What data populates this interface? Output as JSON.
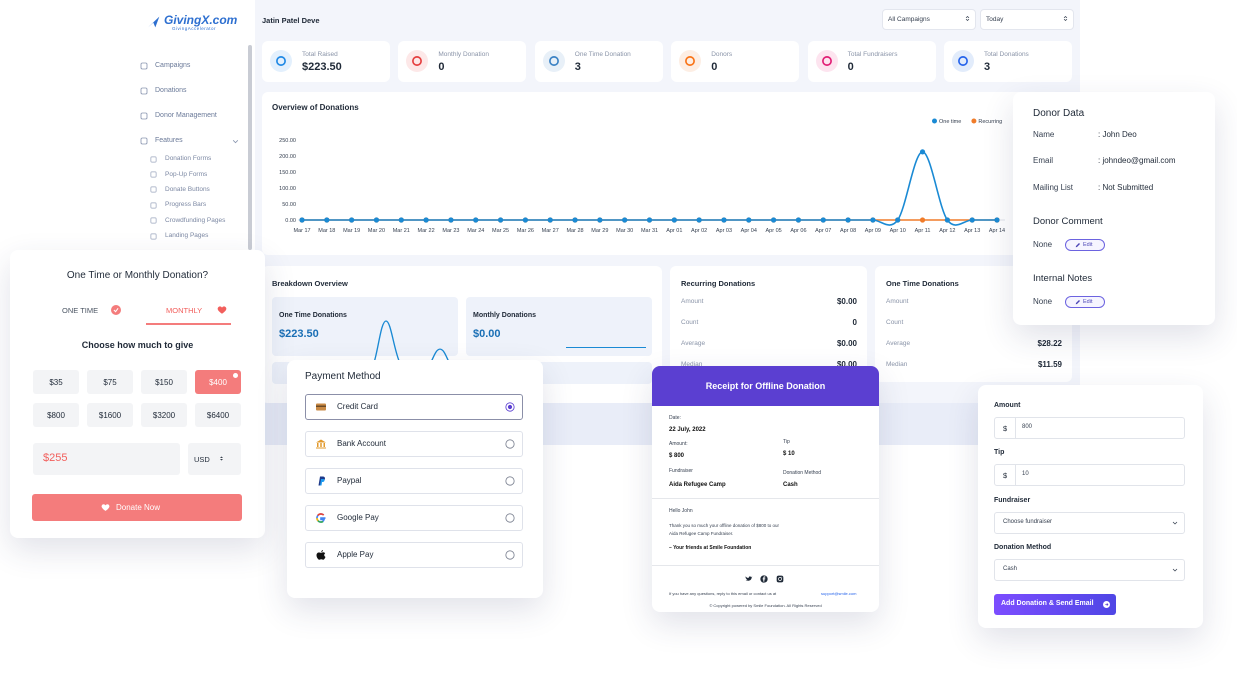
{
  "sidebar": {
    "logo": "GivingX.com",
    "tagline": "GivingAccelerator",
    "menu": [
      "Campaigns",
      "Donations",
      "Donor Management",
      "Features"
    ],
    "submenu": [
      "Donation Forms",
      "Pop-Up Forms",
      "Donate Buttons",
      "Progress Bars",
      "Crowdfunding Pages",
      "Landing Pages"
    ]
  },
  "header": {
    "user": "Jatin Patel Deve",
    "campaign_filter": "All Campaigns",
    "date_filter": "Today"
  },
  "stats": [
    {
      "label": "Total Raised",
      "value": "$223.50"
    },
    {
      "label": "Monthly Donation",
      "value": "0"
    },
    {
      "label": "One Time Donation",
      "value": "3"
    },
    {
      "label": "Donors",
      "value": "0"
    },
    {
      "label": "Total Fundraisers",
      "value": "0"
    },
    {
      "label": "Total Donations",
      "value": "3"
    }
  ],
  "chart_data": {
    "type": "line",
    "title": "Overview of Donations",
    "categories": [
      "Mar 17",
      "Mar 18",
      "Mar 19",
      "Mar 20",
      "Mar 21",
      "Mar 22",
      "Mar 23",
      "Mar 24",
      "Mar 25",
      "Mar 26",
      "Mar 27",
      "Mar 28",
      "Mar 29",
      "Mar 30",
      "Mar 31",
      "Apr 01",
      "Apr 02",
      "Apr 03",
      "Apr 04",
      "Apr 05",
      "Apr 06",
      "Apr 07",
      "Apr 08",
      "Apr 09",
      "Apr 10",
      "Apr 11",
      "Apr 12",
      "Apr 13",
      "Apr 14"
    ],
    "series": [
      {
        "name": "One time",
        "color": "#1a8ad4",
        "values": [
          0,
          0,
          0,
          0,
          0,
          0,
          0,
          0,
          0,
          0,
          0,
          0,
          0,
          0,
          0,
          0,
          0,
          0,
          0,
          0,
          0,
          0,
          0,
          0,
          0,
          213,
          0,
          0,
          0
        ]
      },
      {
        "name": "Recurring",
        "color": "#f07c2a",
        "values": [
          0,
          0,
          0,
          0,
          0,
          0,
          0,
          0,
          0,
          0,
          0,
          0,
          0,
          0,
          0,
          0,
          0,
          0,
          0,
          0,
          0,
          0,
          0,
          0,
          0,
          0,
          0,
          0,
          0
        ]
      }
    ],
    "ylim": [
      0,
      250
    ],
    "yticks": [
      {
        "value": 0,
        "label": "0.00"
      },
      {
        "value": 50,
        "label": "50.00"
      },
      {
        "value": 100,
        "label": "100.00"
      },
      {
        "value": 150,
        "label": "150.00"
      },
      {
        "value": 200,
        "label": "200.00"
      },
      {
        "value": 250,
        "label": "250.00"
      }
    ],
    "grid": false
  },
  "breakdown": {
    "title": "Breakdown Overview",
    "cards": [
      {
        "label": "One Time Donations",
        "value": "$223.50"
      },
      {
        "label": "Monthly Donations",
        "value": "$0.00"
      }
    ]
  },
  "recurring": {
    "title": "Recurring Donations",
    "rows": [
      {
        "label": "Amount",
        "value": "$0.00"
      },
      {
        "label": "Count",
        "value": "0"
      },
      {
        "label": "Average",
        "value": "$0.00"
      },
      {
        "label": "Median",
        "value": "$0.00"
      }
    ]
  },
  "one_time": {
    "title": "One Time Donations",
    "rows": [
      {
        "label": "Amount"
      },
      {
        "label": "Count"
      },
      {
        "label": "Average",
        "value": "$28.22"
      },
      {
        "label": "Median",
        "value": "$11.59"
      }
    ]
  },
  "donor": {
    "title": "Donor Data",
    "fields": [
      {
        "label": "Name",
        "value": ": John Deo"
      },
      {
        "label": "Email",
        "value": ": johndeo@gmail.com"
      },
      {
        "label": "Mailing List",
        "value": ": Not Submitted"
      }
    ],
    "sections": [
      {
        "title": "Donor Comment",
        "value": "None",
        "action": "Edit"
      },
      {
        "title": "Internal Notes",
        "value": "None",
        "action": "Edit"
      }
    ]
  },
  "donation_form": {
    "title": "One Time or Monthly Donation?",
    "tabs": [
      "ONE TIME",
      "MONTHLY"
    ],
    "prompt": "Choose how much to give",
    "amounts": [
      "$35",
      "$75",
      "$150",
      "$400",
      "$800",
      "$1600",
      "$3200",
      "$6400"
    ],
    "custom_amount": "$255",
    "currency": "USD",
    "button": "Donate Now"
  },
  "payment": {
    "title": "Payment Method",
    "options": [
      "Credit Card",
      "Bank Account",
      "Paypal",
      "Google Pay",
      "Apple Pay"
    ]
  },
  "receipt": {
    "title": "Receipt for Offline Donation",
    "date_label": "Date:",
    "date": "22 July, 2022",
    "amount_label": "Amount:",
    "amount": "$ 800",
    "tip_label": "Tip",
    "tip": "$ 10",
    "fundraiser_label": "Fundraiser",
    "fundraiser": "Aida Refugee Camp",
    "method_label": "Donation Method",
    "method": "Cash",
    "greeting": "Hello John",
    "message": [
      "Thank you so much your offline donation of $800 to our",
      "Aida Refugee Camp Fundraiser."
    ],
    "signature": "– Your friends at Smile Foundation",
    "footer": "If you have any questions, reply to this email or contact us at",
    "email": "support@smile.com",
    "copyright": "© Copyright powered by Smile Foundation. All Rights Reserved"
  },
  "add_donation": {
    "fields": [
      {
        "label": "Amount",
        "prefix": "$",
        "value": "800"
      },
      {
        "label": "Tip",
        "prefix": "$",
        "value": "10"
      },
      {
        "label": "Fundraiser",
        "value": "Choose fundraiser"
      },
      {
        "label": "Donation Method",
        "value": "Cash"
      }
    ],
    "button": "Add Donation & Send Email"
  }
}
